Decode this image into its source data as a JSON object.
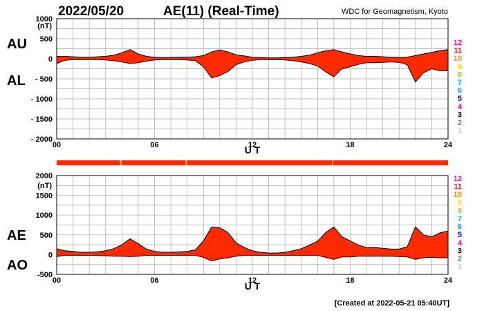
{
  "header": {
    "date": "2022/05/20",
    "title": "AE(11) (Real-Time)",
    "source": "WDC for Geomagnetism, Kyoto"
  },
  "footer": {
    "created": "[Created at 2022-05-21 05:40UT]"
  },
  "legend": {
    "labels": [
      "12",
      "11",
      "10",
      "9",
      "8",
      "7",
      "6",
      "5",
      "4",
      "3",
      "2",
      "1"
    ],
    "colors": [
      "#ff1493",
      "#ff0000",
      "#ff8c00",
      "#ffd700",
      "#9acd32",
      "#00c0c0",
      "#1e90ff",
      "#0000cd",
      "#cc00cc",
      "#000000",
      "#808080",
      "#c8c8c8"
    ]
  },
  "chart_data": [
    {
      "type": "area",
      "title": "AU / AL",
      "xlabel": "U T",
      "ylabel_unit": "(nT)",
      "series_labels": {
        "upper": "AU",
        "lower": "AL"
      },
      "xlim": [
        0,
        24
      ],
      "ylim": [
        -2000,
        1000
      ],
      "x_ticks": [
        "00",
        "06",
        "12",
        "18",
        "24"
      ],
      "y_ticks": [
        "1000",
        "500",
        "0",
        "- 500",
        "- 1000",
        "- 1500",
        "- 2000"
      ],
      "fill_color": "#ff2a00",
      "x": [
        0,
        0.5,
        1,
        1.5,
        2,
        2.5,
        3,
        3.5,
        4,
        4.5,
        5,
        5.5,
        6,
        6.5,
        7,
        7.5,
        8,
        8.5,
        9,
        9.5,
        10,
        10.5,
        11,
        11.5,
        12,
        12.5,
        13,
        13.5,
        14,
        14.5,
        15,
        15.5,
        16,
        16.5,
        17,
        17.5,
        18,
        18.5,
        19,
        19.5,
        20,
        20.5,
        21,
        21.5,
        22,
        22.5,
        23,
        23.5,
        24
      ],
      "upper": [
        60,
        60,
        50,
        40,
        40,
        50,
        60,
        90,
        150,
        230,
        120,
        60,
        40,
        30,
        30,
        40,
        40,
        50,
        80,
        170,
        220,
        170,
        100,
        70,
        40,
        30,
        20,
        20,
        30,
        40,
        60,
        90,
        150,
        200,
        230,
        170,
        120,
        80,
        60,
        60,
        50,
        40,
        30,
        40,
        80,
        120,
        160,
        200,
        230
      ],
      "lower": [
        -120,
        -40,
        -20,
        -20,
        -20,
        -20,
        -30,
        -50,
        -80,
        -120,
        -100,
        -60,
        -30,
        -20,
        -20,
        -20,
        -30,
        -50,
        -200,
        -480,
        -420,
        -320,
        -150,
        -80,
        -40,
        -20,
        -20,
        -20,
        -30,
        -50,
        -80,
        -120,
        -180,
        -330,
        -450,
        -250,
        -200,
        -140,
        -100,
        -100,
        -90,
        -80,
        -90,
        -150,
        -580,
        -350,
        -250,
        -300,
        -300
      ]
    },
    {
      "type": "area",
      "title": "AE / AO",
      "xlabel": "U T",
      "ylabel_unit": "(nT)",
      "series_labels": {
        "upper": "AE",
        "lower": "AO"
      },
      "xlim": [
        0,
        24
      ],
      "ylim": [
        -500,
        2000
      ],
      "x_ticks": [
        "00",
        "06",
        "12",
        "18",
        "24"
      ],
      "y_ticks": [
        "2000",
        "1500",
        "1000",
        "500",
        "0",
        "-500"
      ],
      "fill_color": "#ff2a00",
      "x": [
        0,
        0.5,
        1,
        1.5,
        2,
        2.5,
        3,
        3.5,
        4,
        4.5,
        5,
        5.5,
        6,
        6.5,
        7,
        7.5,
        8,
        8.5,
        9,
        9.5,
        10,
        10.5,
        11,
        11.5,
        12,
        12.5,
        13,
        13.5,
        14,
        14.5,
        15,
        15.5,
        16,
        16.5,
        17,
        17.5,
        18,
        18.5,
        19,
        19.5,
        20,
        20.5,
        21,
        21.5,
        22,
        22.5,
        23,
        23.5,
        24
      ],
      "upper": [
        150,
        100,
        80,
        60,
        60,
        70,
        100,
        150,
        250,
        400,
        280,
        140,
        80,
        60,
        60,
        70,
        80,
        120,
        350,
        700,
        680,
        560,
        300,
        180,
        100,
        60,
        40,
        40,
        60,
        100,
        150,
        240,
        340,
        560,
        700,
        450,
        350,
        240,
        180,
        180,
        160,
        140,
        140,
        200,
        700,
        500,
        450,
        550,
        600
      ],
      "lower": [
        -50,
        -20,
        -20,
        -20,
        -20,
        -20,
        -30,
        -40,
        -40,
        -50,
        -40,
        -20,
        -20,
        -20,
        -20,
        -20,
        -20,
        -20,
        -70,
        -160,
        -110,
        -80,
        -40,
        -20,
        -20,
        -20,
        -20,
        -20,
        -20,
        -20,
        -20,
        -20,
        -20,
        -70,
        -120,
        -60,
        -60,
        -40,
        -40,
        -40,
        -40,
        -40,
        -50,
        -60,
        -120,
        -80,
        -70,
        -80,
        -80
      ]
    }
  ]
}
